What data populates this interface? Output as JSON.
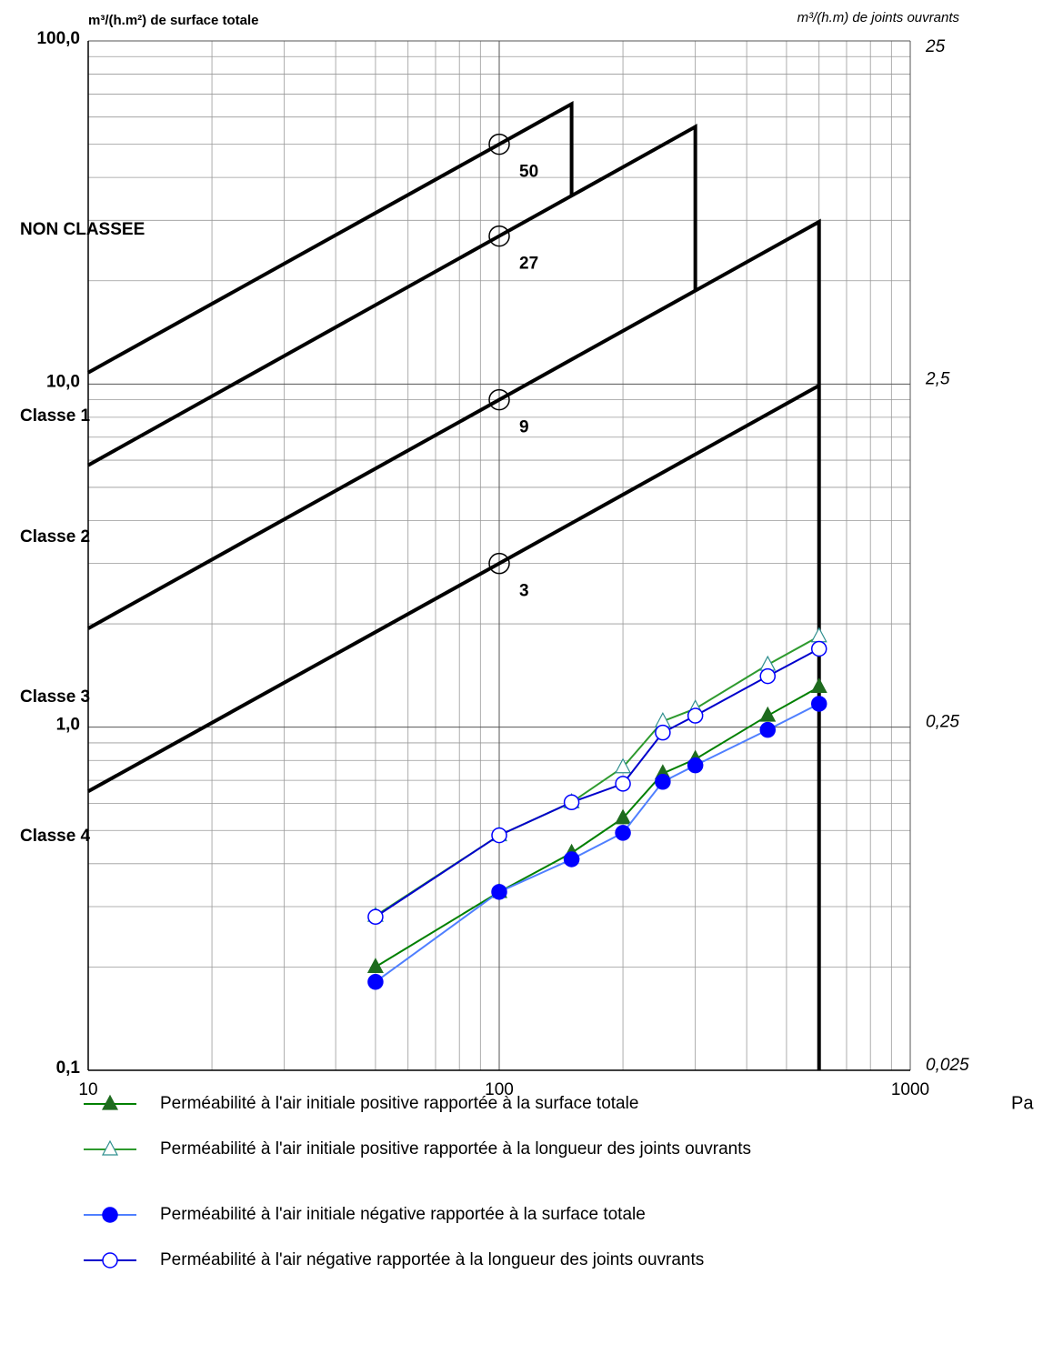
{
  "chart_data": {
    "type": "line",
    "y_label": "m³/(h.m²) de surface totale",
    "y2_label": "m³/(h.m) de joints ouvrants",
    "x_label": "Pa",
    "log_x": true,
    "log_y": true,
    "grid": true,
    "xlim": [
      10,
      1000
    ],
    "xticks": [
      10,
      100,
      1000
    ],
    "xminorticks": [
      20,
      30,
      40,
      50,
      60,
      70,
      80,
      90,
      200,
      300,
      400,
      500,
      600,
      700,
      800,
      900
    ],
    "ylim": [
      0.1,
      100
    ],
    "yticks": [
      {
        "value": 0.1,
        "label": "0,1"
      },
      {
        "value": 1,
        "label": "1,0"
      },
      {
        "value": 10,
        "label": "10,0"
      },
      {
        "value": 100,
        "label": "100,0"
      }
    ],
    "yminorticks": [
      0.2,
      0.3,
      0.4,
      0.5,
      0.6,
      0.7,
      0.8,
      0.9,
      2,
      3,
      4,
      5,
      6,
      7,
      8,
      9,
      20,
      30,
      40,
      50,
      60,
      70,
      80,
      90
    ],
    "y2lim": [
      0.025,
      25
    ],
    "y2ticks": [
      {
        "value": 0.025,
        "label": "0,025"
      },
      {
        "value": 0.25,
        "label": "0,25"
      },
      {
        "value": 2.5,
        "label": "2,5"
      },
      25
    ],
    "zone_labels": [
      "NON CLASSEE",
      "Classe 1",
      "Classe 2",
      "Classe 3",
      "Classe 4"
    ],
    "class_lines": [
      {
        "x": [
          10,
          100,
          150,
          150
        ],
        "values": [
          10.8,
          50,
          65.5,
          35.4
        ]
      },
      {
        "x": [
          10,
          100,
          300,
          300
        ],
        "values": [
          5.8,
          27,
          56.2,
          18.7
        ]
      },
      {
        "x": [
          10,
          100,
          600,
          600
        ],
        "values": [
          1.94,
          9,
          29.7,
          0.1
        ]
      },
      {
        "x": [
          10,
          100,
          600
        ],
        "values": [
          0.65,
          3,
          9.9
        ]
      }
    ],
    "x": [
      50,
      100,
      150,
      200,
      250,
      300,
      450,
      600
    ],
    "series": [
      {
        "name": "Perméabilité à l'air initiale positive rapportée à la surface totale",
        "color": "#008000",
        "marker_color": "#1e6b1e",
        "marker": "triangle",
        "filled": true,
        "values": [
          0.2,
          0.331,
          0.43,
          0.543,
          0.733,
          0.807,
          1.08,
          1.31
        ]
      },
      {
        "name": "Perméabilité à l'air initiale positive rapportée à la longueur des joints ouvrants",
        "color": "#2e9a2e",
        "marker_color": "#2f8f8f",
        "marker": "triangle",
        "filled": false,
        "axis": "y2",
        "values": [
          0.0705,
          0.121,
          0.151,
          0.191,
          0.26,
          0.283,
          0.38,
          0.46
        ]
      },
      {
        "name": "Perméabilité à l'air initiale négative rapportée à la surface totale",
        "color": "#4f7fff",
        "marker_color": "#0000ff",
        "marker": "circle",
        "filled": true,
        "values": [
          0.181,
          0.331,
          0.412,
          0.492,
          0.693,
          0.774,
          0.982,
          1.17
        ]
      },
      {
        "name": "Perméabilité à l'air négative rapportée à la longueur des joints ouvrants",
        "color": "#0000cc",
        "marker_color": "#0000ff",
        "marker": "circle",
        "filled": false,
        "axis": "y2",
        "values": [
          0.07,
          0.121,
          0.151,
          0.171,
          0.241,
          0.27,
          0.352,
          0.423
        ]
      }
    ]
  }
}
